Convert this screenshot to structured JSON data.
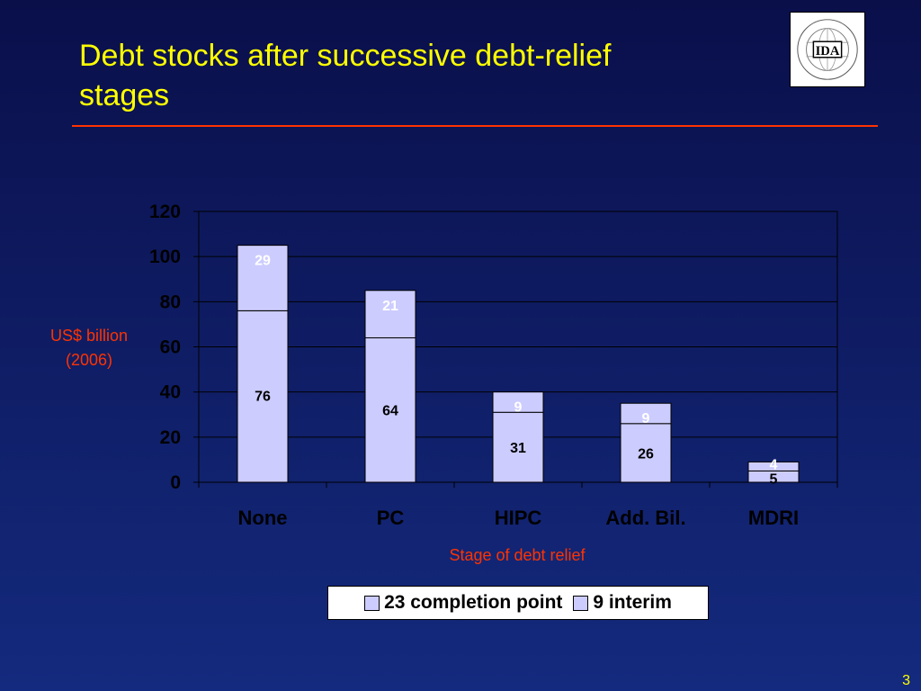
{
  "slide": {
    "title": "Debt stocks after successive debt-relief stages",
    "page_number": "3",
    "logo_text": "IDA",
    "logo_ring_text": "INTERNATIONAL DEVELOPMENT ASSOCIATION"
  },
  "colors": {
    "title": "#ffff00",
    "axis_title": "#ff3300",
    "bar_fill": "#ccccff",
    "top_segment_label": "#ffffff",
    "bottom_segment_label": "#000000"
  },
  "chart_data": {
    "type": "bar",
    "stacked": true,
    "categories": [
      "None",
      "PC",
      "HIPC",
      "Add. Bil.",
      "MDRI"
    ],
    "series": [
      {
        "name": "23 completion point",
        "values": [
          76,
          64,
          31,
          26,
          5
        ]
      },
      {
        "name": "9 interim",
        "values": [
          29,
          21,
          9,
          9,
          4
        ]
      }
    ],
    "xlabel": "Stage of debt relief",
    "ylabel": "US$ billion (2006)",
    "ylim": [
      0,
      120
    ],
    "yticks": [
      0,
      20,
      40,
      60,
      80,
      100,
      120
    ],
    "grid": true,
    "legend": "bottom"
  }
}
